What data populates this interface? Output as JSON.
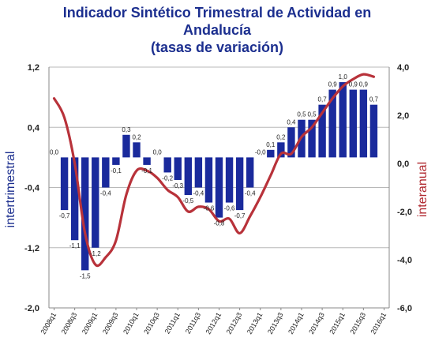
{
  "chart_data": {
    "type": "bar",
    "title": [
      "Indicador Sintético Trimestral de Actividad en",
      "Andalucía",
      "(tasas de variación)"
    ],
    "ylabel_left": "intertrimestral",
    "ylabel_right": "interanual",
    "y_left": {
      "range": [
        -2.0,
        1.2
      ],
      "ticks": [
        "1,2",
        "0,4",
        "-0,4",
        "-1,2",
        "-2,0"
      ],
      "tick_values": [
        1.2,
        0.4,
        -0.4,
        -1.2,
        -2.0
      ]
    },
    "y_right": {
      "range": [
        -6.0,
        4.0
      ],
      "ticks": [
        "4,0",
        "2,0",
        "0,0",
        "-2,0",
        "-4,0",
        "-6,0"
      ],
      "tick_values": [
        4.0,
        2.0,
        0.0,
        -2.0,
        -4.0,
        -6.0
      ]
    },
    "x_tick_labels": [
      "2008q1",
      "2008q3",
      "2009q1",
      "2009q3",
      "2010q1",
      "2010q3",
      "2011q1",
      "2011q3",
      "2012q1",
      "2012q3",
      "2013q1",
      "2013q3",
      "2014q1",
      "2014q3",
      "2015q1",
      "2015q3",
      "2016q1"
    ],
    "categories": [
      "2008q1",
      "2008q2",
      "2008q3",
      "2008q4",
      "2009q1",
      "2009q2",
      "2009q3",
      "2009q4",
      "2010q1",
      "2010q2",
      "2010q3",
      "2010q4",
      "2011q1",
      "2011q2",
      "2011q3",
      "2011q4",
      "2012q1",
      "2012q2",
      "2012q3",
      "2012q4",
      "2013q1",
      "2013q2",
      "2013q3",
      "2013q4",
      "2014q1",
      "2014q2",
      "2014q3",
      "2014q4",
      "2015q1",
      "2015q2",
      "2015q3",
      "2015q4",
      "2016q1"
    ],
    "series": [
      {
        "kind": "bar",
        "axis": "left",
        "color": "#1a2a9c",
        "values": [
          0.0,
          -0.7,
          -1.1,
          -1.5,
          -1.2,
          -0.4,
          -0.1,
          0.3,
          0.2,
          -0.1,
          0.0,
          -0.2,
          -0.3,
          -0.5,
          -0.4,
          -0.6,
          -0.8,
          -0.6,
          -0.7,
          -0.4,
          -0.0,
          0.1,
          0.2,
          0.4,
          0.5,
          0.5,
          0.7,
          0.9,
          1.0,
          0.9,
          0.9,
          0.7,
          null
        ],
        "labels": [
          "0,0",
          "-0,7",
          "-1,1",
          "-1,5",
          "-1,2",
          "-0,4",
          "-0,1",
          "0,3",
          "0,2",
          "-0,1",
          "0,0",
          "-0,2",
          "-0,3",
          "-0,5",
          "-0,4",
          "-0,6",
          "-0,8",
          "-0,6",
          "-0,7",
          "-0,4",
          "-0,0",
          "0,1",
          "0,2",
          "0,4",
          "0,5",
          "0,5",
          "0,7",
          "0,9",
          "1,0",
          "0,9",
          "0,9",
          "0,7",
          ""
        ]
      },
      {
        "kind": "line",
        "axis": "right",
        "color": "#b8323a",
        "values": [
          2.7,
          1.9,
          0.0,
          -2.9,
          -4.2,
          -3.9,
          -3.2,
          -1.3,
          -0.3,
          -0.3,
          -0.6,
          -1.1,
          -1.4,
          -2.0,
          -1.8,
          -1.9,
          -2.4,
          -2.3,
          -2.9,
          -2.2,
          -1.4,
          -0.5,
          0.4,
          0.4,
          1.1,
          1.5,
          2.1,
          2.7,
          3.2,
          3.5,
          3.7,
          3.6,
          null
        ]
      }
    ],
    "grid": true,
    "legend": "none"
  }
}
